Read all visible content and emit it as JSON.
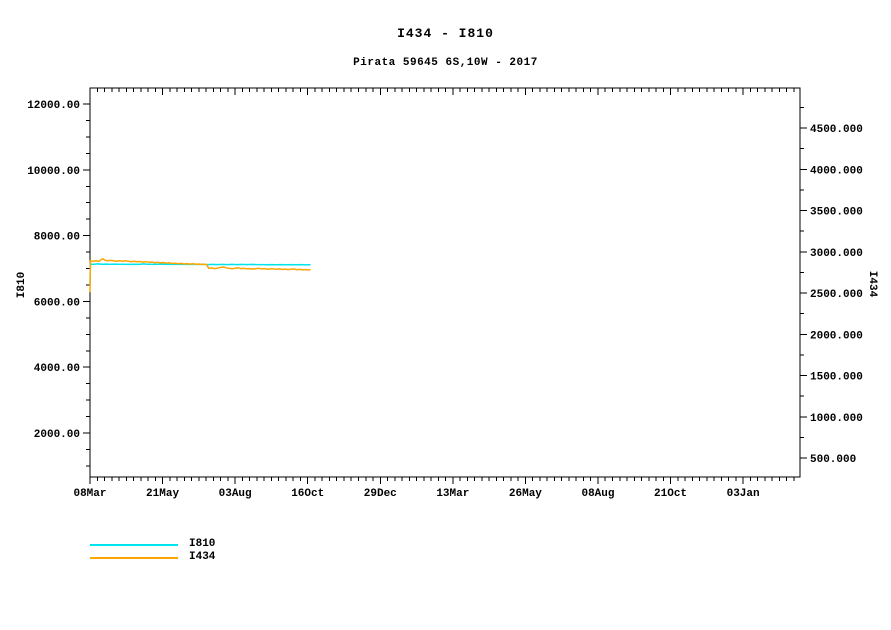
{
  "chart": {
    "title": "I434 - I810",
    "subtitle": "Pirata 59645 6S,10W - 2017",
    "left_axis_title": "I810",
    "right_axis_title": "I434",
    "legend": [
      {
        "label": "I810",
        "color": "#00e4ee"
      },
      {
        "label": "I434",
        "color": "#ffa500"
      }
    ],
    "frame_color": "#000000",
    "background_color": "#ffffff"
  },
  "chart_data": {
    "type": "line",
    "title": "I434 - I810",
    "subtitle": "Pirata 59645 6S,10W - 2017",
    "grid": false,
    "legend_position": "bottom-left",
    "x_axis": {
      "unit": "days from 08Mar",
      "range": [
        0,
        724
      ],
      "minor_step": 7.4,
      "major_ticks": [
        {
          "day": 0,
          "label": "08Mar"
        },
        {
          "day": 74,
          "label": "21May"
        },
        {
          "day": 148,
          "label": "03Aug"
        },
        {
          "day": 222,
          "label": "16Oct"
        },
        {
          "day": 296,
          "label": "29Dec"
        },
        {
          "day": 370,
          "label": "13Mar"
        },
        {
          "day": 444,
          "label": "26May"
        },
        {
          "day": 518,
          "label": "08Aug"
        },
        {
          "day": 592,
          "label": "21Oct"
        },
        {
          "day": 666,
          "label": "03Jan"
        }
      ]
    },
    "left_axis": {
      "label": "I810",
      "range": [
        663,
        12487
      ],
      "minor_step": 500,
      "major_step": 2000,
      "major_ticks": [
        {
          "value": 2000,
          "label": "2000.00"
        },
        {
          "value": 4000,
          "label": "4000.00"
        },
        {
          "value": 6000,
          "label": "6000.00"
        },
        {
          "value": 8000,
          "label": "8000.00"
        },
        {
          "value": 10000,
          "label": "10000.00"
        },
        {
          "value": 12000,
          "label": "12000.00"
        }
      ]
    },
    "right_axis": {
      "label": "I434",
      "range": [
        270,
        4985
      ],
      "minor_step": 250,
      "major_step": 500,
      "major_ticks": [
        {
          "value": 500,
          "label": "500.000"
        },
        {
          "value": 1000,
          "label": "1000.000"
        },
        {
          "value": 1500,
          "label": "1500.000"
        },
        {
          "value": 2000,
          "label": "2000.000"
        },
        {
          "value": 2500,
          "label": "2500.000"
        },
        {
          "value": 3000,
          "label": "3000.000"
        },
        {
          "value": 3500,
          "label": "3500.000"
        },
        {
          "value": 4000,
          "label": "4000.000"
        },
        {
          "value": 4500,
          "label": "4500.000"
        }
      ]
    },
    "series": [
      {
        "name": "I810",
        "axis": "left",
        "color": "#00e4ee",
        "points": [
          [
            0,
            6500
          ],
          [
            0.4,
            7130
          ],
          [
            4,
            7130
          ],
          [
            8,
            7140
          ],
          [
            12,
            7130
          ],
          [
            16,
            7135
          ],
          [
            20,
            7130
          ],
          [
            25,
            7135
          ],
          [
            30,
            7130
          ],
          [
            35,
            7130
          ],
          [
            40,
            7125
          ],
          [
            45,
            7130
          ],
          [
            50,
            7125
          ],
          [
            55,
            7140
          ],
          [
            58,
            7130
          ],
          [
            62,
            7130
          ],
          [
            66,
            7125
          ],
          [
            70,
            7130
          ],
          [
            75,
            7130
          ],
          [
            80,
            7125
          ],
          [
            85,
            7130
          ],
          [
            90,
            7125
          ],
          [
            95,
            7130
          ],
          [
            100,
            7125
          ],
          [
            105,
            7130
          ],
          [
            110,
            7125
          ],
          [
            115,
            7130
          ],
          [
            120,
            7120
          ],
          [
            125,
            7125
          ],
          [
            130,
            7120
          ],
          [
            135,
            7125
          ],
          [
            140,
            7120
          ],
          [
            145,
            7125
          ],
          [
            150,
            7120
          ],
          [
            155,
            7125
          ],
          [
            160,
            7120
          ],
          [
            165,
            7125
          ],
          [
            170,
            7120
          ],
          [
            175,
            7120
          ],
          [
            180,
            7115
          ],
          [
            185,
            7120
          ],
          [
            190,
            7115
          ],
          [
            195,
            7120
          ],
          [
            200,
            7115
          ],
          [
            205,
            7120
          ],
          [
            210,
            7115
          ],
          [
            215,
            7120
          ],
          [
            220,
            7115
          ],
          [
            225,
            7115
          ]
        ]
      },
      {
        "name": "I434",
        "axis": "right",
        "color": "#ffa500",
        "points": [
          [
            0,
            2510
          ],
          [
            0.4,
            2890
          ],
          [
            3,
            2885
          ],
          [
            6,
            2890
          ],
          [
            9,
            2885
          ],
          [
            13,
            2915
          ],
          [
            15,
            2900
          ],
          [
            18,
            2890
          ],
          [
            21,
            2895
          ],
          [
            24,
            2890
          ],
          [
            27,
            2885
          ],
          [
            30,
            2890
          ],
          [
            33,
            2885
          ],
          [
            36,
            2890
          ],
          [
            39,
            2885
          ],
          [
            42,
            2880
          ],
          [
            45,
            2885
          ],
          [
            48,
            2878
          ],
          [
            51,
            2882
          ],
          [
            54,
            2875
          ],
          [
            57,
            2880
          ],
          [
            60,
            2872
          ],
          [
            63,
            2876
          ],
          [
            66,
            2868
          ],
          [
            69,
            2872
          ],
          [
            72,
            2865
          ],
          [
            75,
            2870
          ],
          [
            78,
            2862
          ],
          [
            81,
            2866
          ],
          [
            84,
            2858
          ],
          [
            87,
            2862
          ],
          [
            90,
            2855
          ],
          [
            93,
            2860
          ],
          [
            96,
            2852
          ],
          [
            99,
            2856
          ],
          [
            102,
            2850
          ],
          [
            105,
            2854
          ],
          [
            108,
            2848
          ],
          [
            111,
            2852
          ],
          [
            114,
            2846
          ],
          [
            117,
            2848
          ],
          [
            119,
            2845
          ],
          [
            121,
            2798
          ],
          [
            124,
            2805
          ],
          [
            127,
            2795
          ],
          [
            130,
            2802
          ],
          [
            133,
            2810
          ],
          [
            136,
            2815
          ],
          [
            139,
            2806
          ],
          [
            142,
            2798
          ],
          [
            145,
            2795
          ],
          [
            148,
            2800
          ],
          [
            151,
            2806
          ],
          [
            154,
            2796
          ],
          [
            157,
            2800
          ],
          [
            160,
            2792
          ],
          [
            163,
            2796
          ],
          [
            166,
            2790
          ],
          [
            169,
            2795
          ],
          [
            172,
            2800
          ],
          [
            175,
            2792
          ],
          [
            178,
            2796
          ],
          [
            181,
            2788
          ],
          [
            184,
            2792
          ],
          [
            187,
            2795
          ],
          [
            190,
            2788
          ],
          [
            193,
            2792
          ],
          [
            196,
            2786
          ],
          [
            199,
            2790
          ],
          [
            202,
            2784
          ],
          [
            205,
            2788
          ],
          [
            208,
            2792
          ],
          [
            211,
            2782
          ],
          [
            214,
            2786
          ],
          [
            217,
            2780
          ],
          [
            220,
            2784
          ],
          [
            223,
            2780
          ],
          [
            225,
            2782
          ]
        ]
      }
    ]
  }
}
